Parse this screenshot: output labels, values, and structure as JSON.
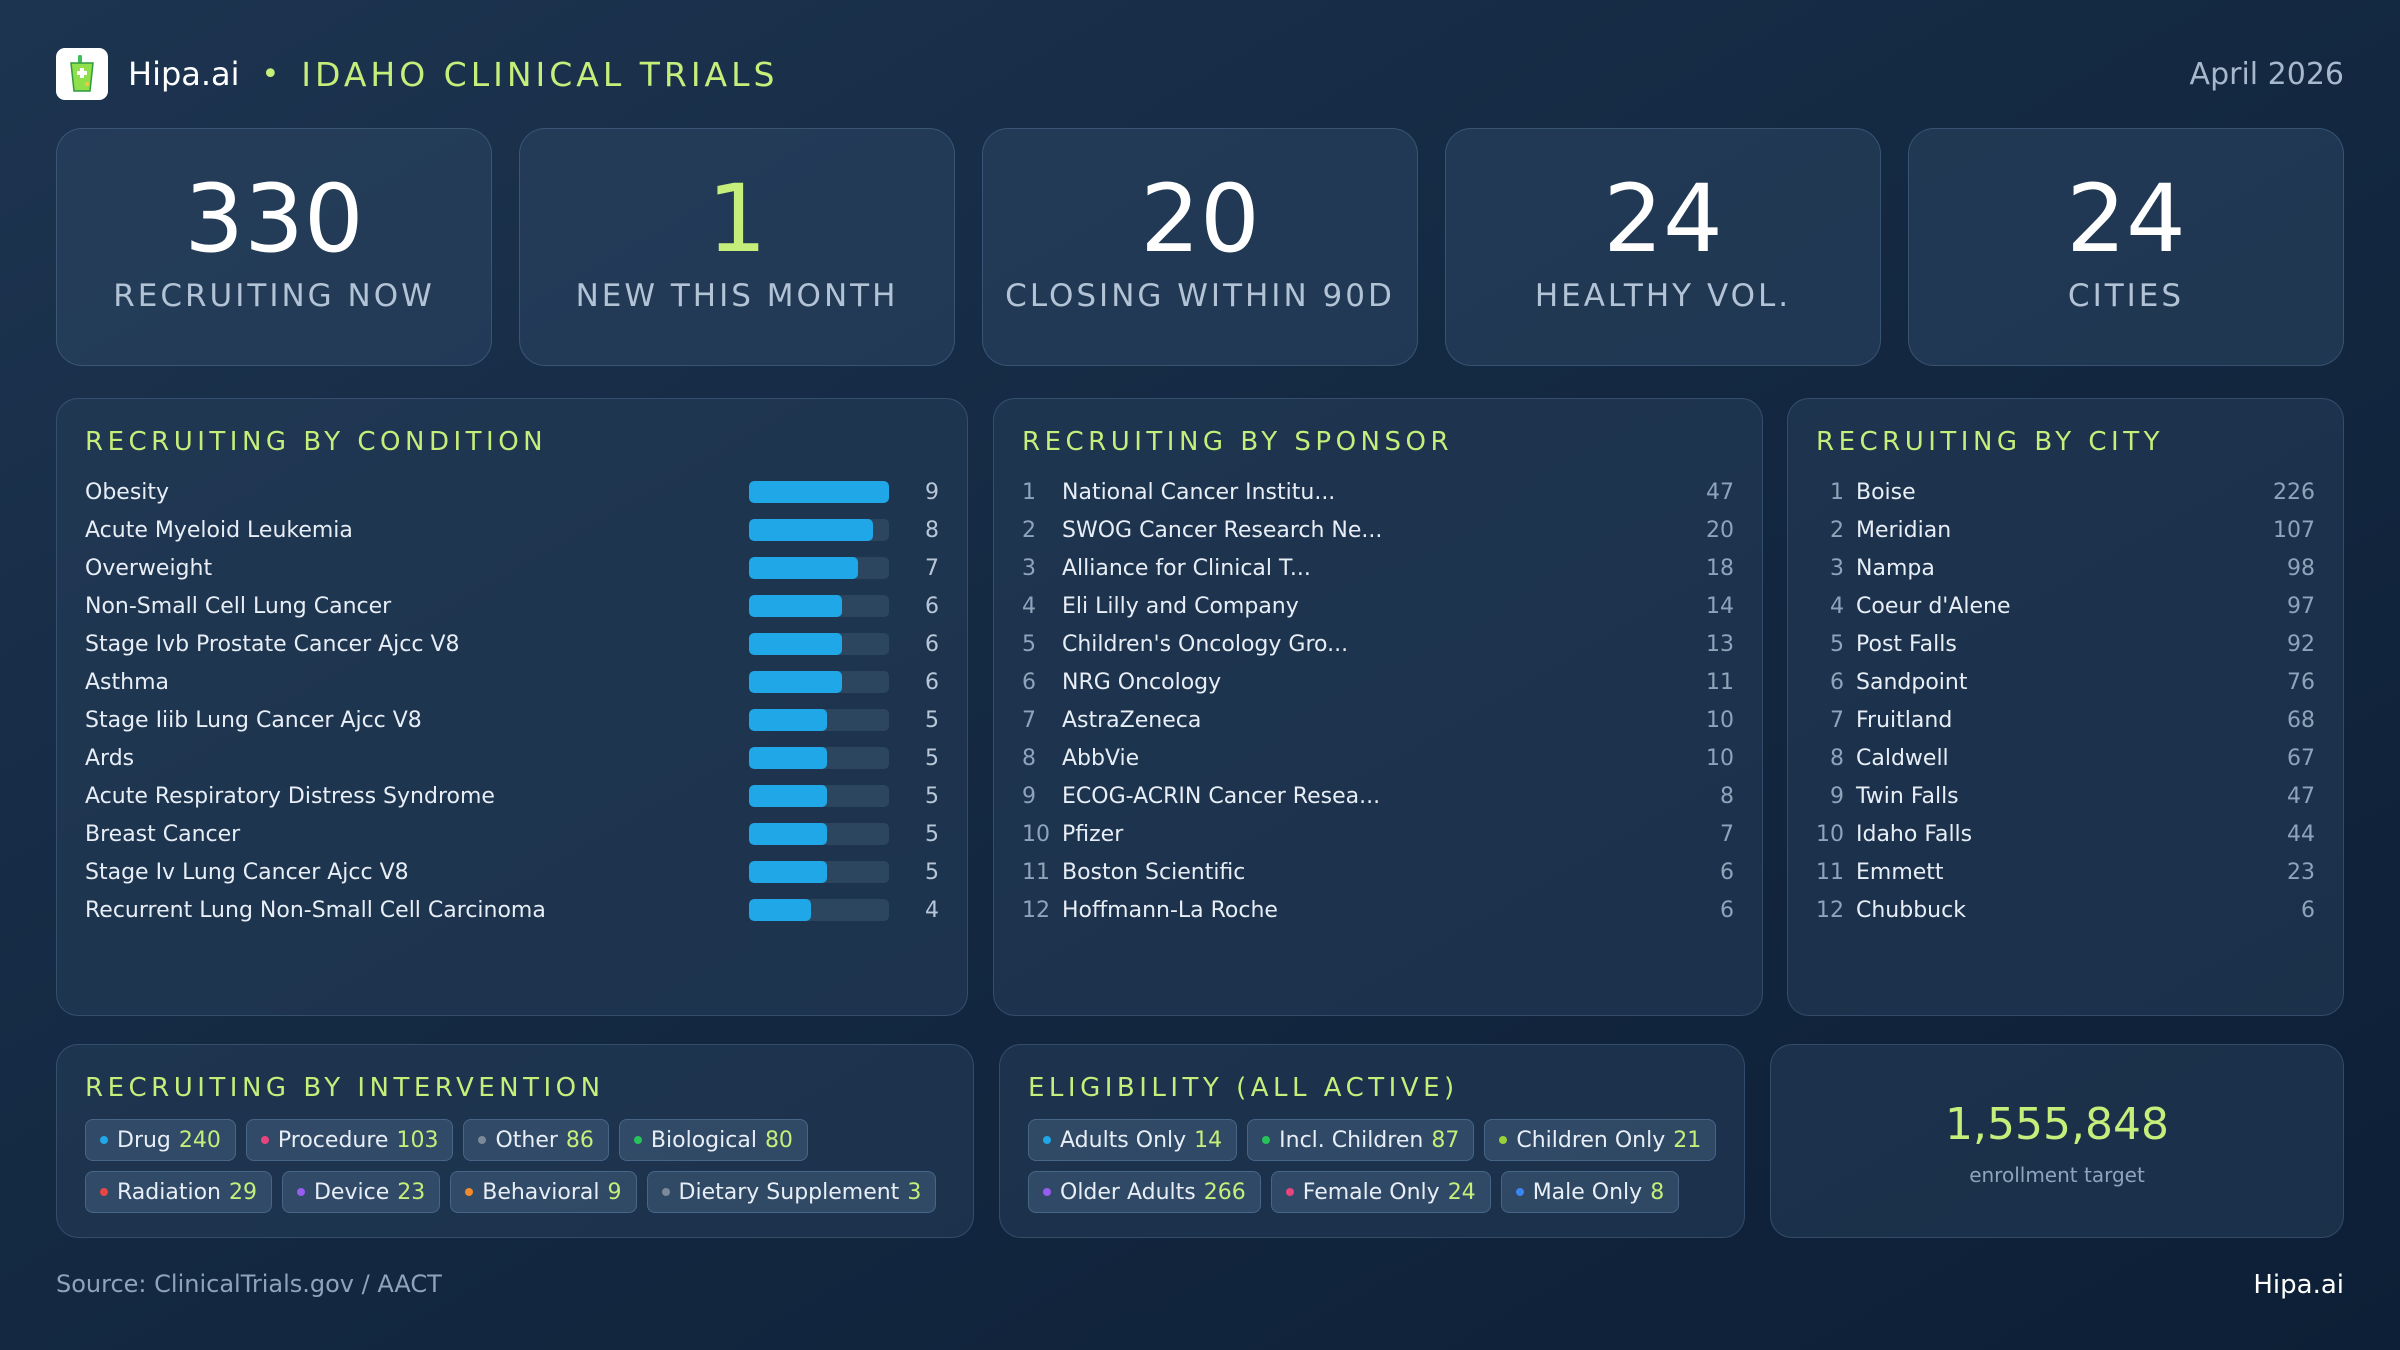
{
  "header": {
    "brand": "Hipa.ai",
    "separator": "•",
    "title": "IDAHO CLINICAL TRIALS",
    "date": "April 2026",
    "logo_icon": "clinical-trial-cup-icon"
  },
  "stats": [
    {
      "value": "330",
      "label": "RECRUITING NOW",
      "highlight": false
    },
    {
      "value": "1",
      "label": "NEW THIS MONTH",
      "highlight": true
    },
    {
      "value": "20",
      "label": "CLOSING WITHIN 90D",
      "highlight": false
    },
    {
      "value": "24",
      "label": "HEALTHY VOL.",
      "highlight": false
    },
    {
      "value": "24",
      "label": "CITIES",
      "highlight": false
    }
  ],
  "condition": {
    "title": "RECRUITING BY CONDITION",
    "bar_max": 9,
    "items": [
      {
        "name": "Obesity",
        "value": 9
      },
      {
        "name": "Acute Myeloid Leukemia",
        "value": 8
      },
      {
        "name": "Overweight",
        "value": 7
      },
      {
        "name": "Non-Small Cell Lung Cancer",
        "value": 6
      },
      {
        "name": "Stage Ivb Prostate Cancer Ajcc V8",
        "value": 6
      },
      {
        "name": "Asthma",
        "value": 6
      },
      {
        "name": "Stage Iiib Lung Cancer Ajcc V8",
        "value": 5
      },
      {
        "name": "Ards",
        "value": 5
      },
      {
        "name": "Acute Respiratory Distress Syndrome",
        "value": 5
      },
      {
        "name": "Breast Cancer",
        "value": 5
      },
      {
        "name": "Stage Iv Lung Cancer Ajcc V8",
        "value": 5
      },
      {
        "name": "Recurrent Lung Non-Small Cell Carcinoma",
        "value": 4
      }
    ]
  },
  "sponsor": {
    "title": "RECRUITING BY SPONSOR",
    "items": [
      {
        "rank": "1",
        "name": "National Cancer Institu...",
        "count": "47"
      },
      {
        "rank": "2",
        "name": "SWOG Cancer Research Ne...",
        "count": "20"
      },
      {
        "rank": "3",
        "name": "Alliance for Clinical T...",
        "count": "18"
      },
      {
        "rank": "4",
        "name": "Eli Lilly and Company",
        "count": "14"
      },
      {
        "rank": "5",
        "name": "Children's Oncology Gro...",
        "count": "13"
      },
      {
        "rank": "6",
        "name": "NRG Oncology",
        "count": "11"
      },
      {
        "rank": "7",
        "name": "AstraZeneca",
        "count": "10"
      },
      {
        "rank": "8",
        "name": "AbbVie",
        "count": "10"
      },
      {
        "rank": "9",
        "name": "ECOG-ACRIN Cancer Resea...",
        "count": "8"
      },
      {
        "rank": "10",
        "name": "Pfizer",
        "count": "7"
      },
      {
        "rank": "11",
        "name": "Boston Scientific",
        "count": "6"
      },
      {
        "rank": "12",
        "name": "Hoffmann-La Roche",
        "count": "6"
      }
    ]
  },
  "city": {
    "title": "RECRUITING BY CITY",
    "items": [
      {
        "rank": "1",
        "name": "Boise",
        "count": "226"
      },
      {
        "rank": "2",
        "name": "Meridian",
        "count": "107"
      },
      {
        "rank": "3",
        "name": "Nampa",
        "count": "98"
      },
      {
        "rank": "4",
        "name": "Coeur d'Alene",
        "count": "97"
      },
      {
        "rank": "5",
        "name": "Post Falls",
        "count": "92"
      },
      {
        "rank": "6",
        "name": "Sandpoint",
        "count": "76"
      },
      {
        "rank": "7",
        "name": "Fruitland",
        "count": "68"
      },
      {
        "rank": "8",
        "name": "Caldwell",
        "count": "67"
      },
      {
        "rank": "9",
        "name": "Twin Falls",
        "count": "47"
      },
      {
        "rank": "10",
        "name": "Idaho Falls",
        "count": "44"
      },
      {
        "rank": "11",
        "name": "Emmett",
        "count": "23"
      },
      {
        "rank": "12",
        "name": "Chubbuck",
        "count": "6"
      }
    ]
  },
  "intervention": {
    "title": "RECRUITING BY INTERVENTION",
    "items": [
      {
        "label": "Drug",
        "count": "240",
        "color": "#1fa7e8"
      },
      {
        "label": "Procedure",
        "count": "103",
        "color": "#e8457f"
      },
      {
        "label": "Other",
        "count": "86",
        "color": "#7d8a99"
      },
      {
        "label": "Biological",
        "count": "80",
        "color": "#27c25a"
      },
      {
        "label": "Radiation",
        "count": "29",
        "color": "#e84545"
      },
      {
        "label": "Device",
        "count": "23",
        "color": "#9a5cf0"
      },
      {
        "label": "Behavioral",
        "count": "9",
        "color": "#f08a2a"
      },
      {
        "label": "Dietary Supplement",
        "count": "3",
        "color": "#7d8a99"
      }
    ]
  },
  "eligibility": {
    "title": "ELIGIBILITY (ALL ACTIVE)",
    "items": [
      {
        "label": "Adults Only",
        "count": "14",
        "color": "#1fa7e8"
      },
      {
        "label": "Incl. Children",
        "count": "87",
        "color": "#27c25a"
      },
      {
        "label": "Children Only",
        "count": "21",
        "color": "#9ad13a"
      },
      {
        "label": "Older Adults",
        "count": "266",
        "color": "#9a5cf0"
      },
      {
        "label": "Female Only",
        "count": "24",
        "color": "#e8457f"
      },
      {
        "label": "Male Only",
        "count": "8",
        "color": "#3a86f0"
      }
    ]
  },
  "enrollment": {
    "value": "1,555,848",
    "label": "enrollment target"
  },
  "footer": {
    "source": "Source: ClinicalTrials.gov / AACT",
    "brand": "Hipa.ai"
  }
}
